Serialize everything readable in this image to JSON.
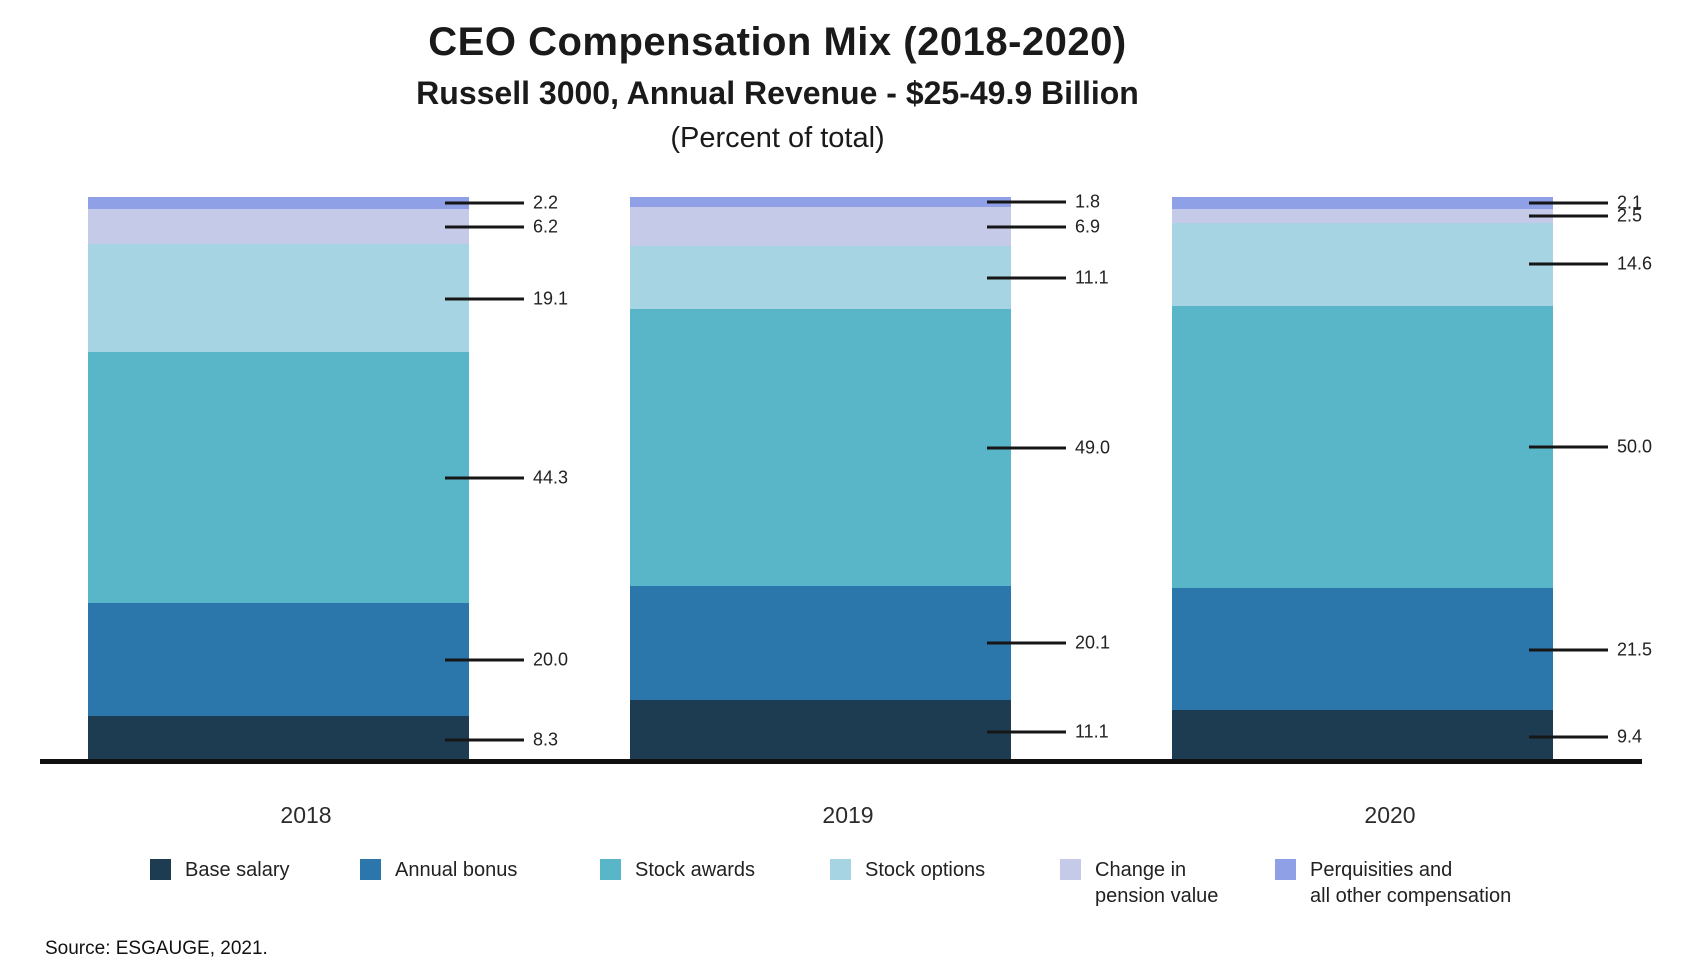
{
  "header": {
    "title": "CEO Compensation Mix (2018-2020)",
    "subtitle": "Russell 3000, Annual Revenue - $25-49.9 Billion",
    "note": "(Percent of total)"
  },
  "chart_data": {
    "type": "bar",
    "stacked": true,
    "percent_of_total": true,
    "title": "CEO Compensation Mix (2018-2020)",
    "subtitle": "Russell 3000, Annual Revenue - $25-49.9 Billion (Percent of total)",
    "categories": [
      "2018",
      "2019",
      "2020"
    ],
    "series": [
      {
        "name": "Base salary",
        "legend_lines": [
          "Base salary"
        ],
        "color": "#1d3c52",
        "values": [
          8.3,
          11.1,
          9.4
        ]
      },
      {
        "name": "Annual bonus",
        "legend_lines": [
          "Annual bonus"
        ],
        "color": "#2b77ab",
        "values": [
          20.0,
          20.1,
          21.5
        ]
      },
      {
        "name": "Stock awards",
        "legend_lines": [
          "Stock awards"
        ],
        "color": "#58b6c8",
        "values": [
          44.3,
          49.0,
          50.0
        ]
      },
      {
        "name": "Stock options",
        "legend_lines": [
          "Stock options"
        ],
        "color": "#a6d4e2",
        "values": [
          19.1,
          11.1,
          14.6
        ]
      },
      {
        "name": "Change in pension value",
        "legend_lines": [
          "Change in",
          "pension value"
        ],
        "color": "#c5cae8",
        "values": [
          6.2,
          6.9,
          2.5
        ]
      },
      {
        "name": "Perquisities and all other compensation",
        "legend_lines": [
          "Perquisities and",
          "all other compensation"
        ],
        "color": "#8fa0e6",
        "values": [
          2.2,
          1.8,
          2.1
        ]
      }
    ],
    "value_label_format": "one_decimal",
    "ylim": [
      0,
      100
    ],
    "grid": false,
    "legend_position": "bottom",
    "axis_line_color": "#111111"
  },
  "footer": {
    "source": "Source: ESGAUGE, 2021."
  }
}
